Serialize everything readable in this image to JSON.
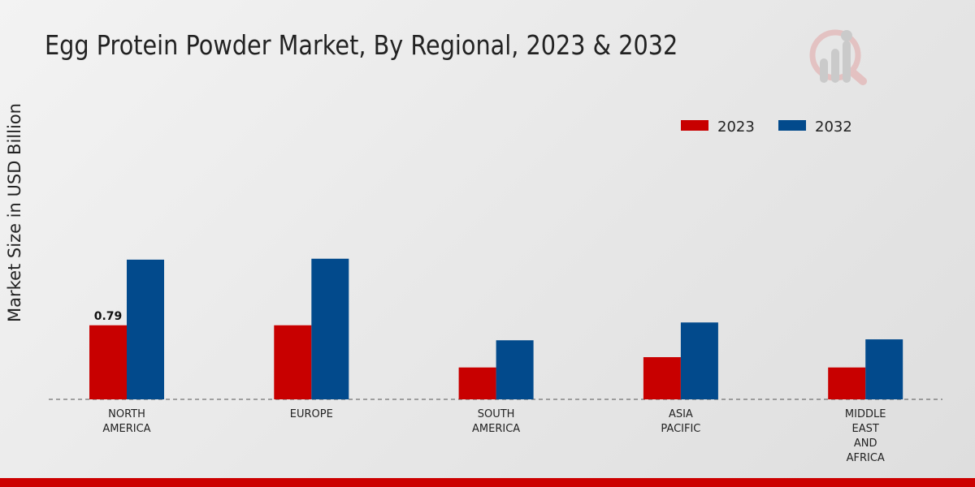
{
  "chart_data": {
    "type": "bar",
    "title": "Egg Protein Powder Market, By Regional, 2023 & 2032",
    "xlabel": "",
    "ylabel": "Market Size in USD Billion",
    "categories": [
      [
        "NORTH",
        "AMERICA"
      ],
      [
        "EUROPE"
      ],
      [
        "SOUTH",
        "AMERICA"
      ],
      [
        "ASIA",
        "PACIFIC"
      ],
      [
        "MIDDLE",
        "EAST",
        "AND",
        "AFRICA"
      ]
    ],
    "series": [
      {
        "name": "2023",
        "color": "#c80000",
        "values": [
          0.79,
          0.79,
          0.34,
          0.45,
          0.34
        ]
      },
      {
        "name": "2032",
        "color": "#024a8c",
        "values": [
          1.49,
          1.5,
          0.63,
          0.82,
          0.64
        ]
      }
    ],
    "data_labels": [
      {
        "series": 0,
        "index": 0,
        "text": "0.79"
      }
    ],
    "ylim": [
      0,
      2.6
    ],
    "grid": false,
    "legend_position": "top-right"
  }
}
